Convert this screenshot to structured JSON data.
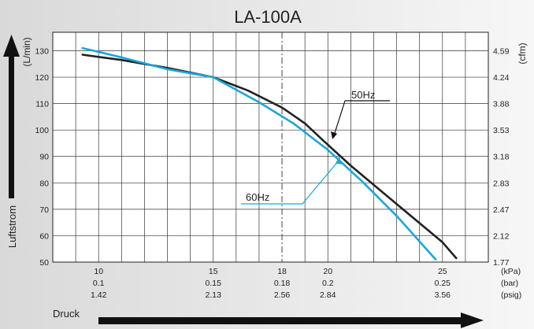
{
  "chart_data": {
    "type": "line",
    "title": "LA-100A",
    "xlabel": "Druck",
    "ylabel": "Luftstrom",
    "xlim": [
      8,
      27
    ],
    "ylim": [
      50,
      137
    ],
    "grid": true,
    "x_ticks": [
      10,
      15,
      18,
      20,
      25
    ],
    "x_tick_labels": {
      "kpa": [
        "10",
        "15",
        "18",
        "20",
        "25"
      ],
      "bar": [
        "0.1",
        "0.15",
        "0.18",
        "0.2",
        "0.25"
      ],
      "psig": [
        "1.42",
        "2.13",
        "2.56",
        "2.84",
        "3.56"
      ]
    },
    "x_units": [
      "(kPa)",
      "(bar)",
      "(psig)"
    ],
    "y_ticks": [
      50,
      60,
      70,
      80,
      90,
      100,
      110,
      120,
      130
    ],
    "y_unit_left": "(L/min)",
    "y_unit_right": "(cfm)",
    "y_right_ticks": [
      "1.77",
      "2.12",
      "2.47",
      "2.83",
      "3.18",
      "3.53",
      "3.88",
      "4.24",
      "4.59"
    ],
    "reference_line_x": 18,
    "series": [
      {
        "name": "50Hz",
        "color": "#222222",
        "x": [
          9.3,
          11,
          13,
          15,
          16.5,
          18,
          19,
          19.8,
          21,
          23,
          25,
          25.6
        ],
        "y": [
          128.5,
          126.5,
          123.5,
          120,
          115,
          108.5,
          102.5,
          96,
          86.5,
          72,
          57.5,
          51.5
        ]
      },
      {
        "name": "60Hz",
        "color": "#1aa6dc",
        "x": [
          9.3,
          11,
          13,
          15,
          17,
          18.5,
          20,
          21.5,
          23,
          24.7
        ],
        "y": [
          131,
          127.5,
          123,
          120,
          110.5,
          102.5,
          92.5,
          80.5,
          67.5,
          51
        ]
      }
    ]
  }
}
